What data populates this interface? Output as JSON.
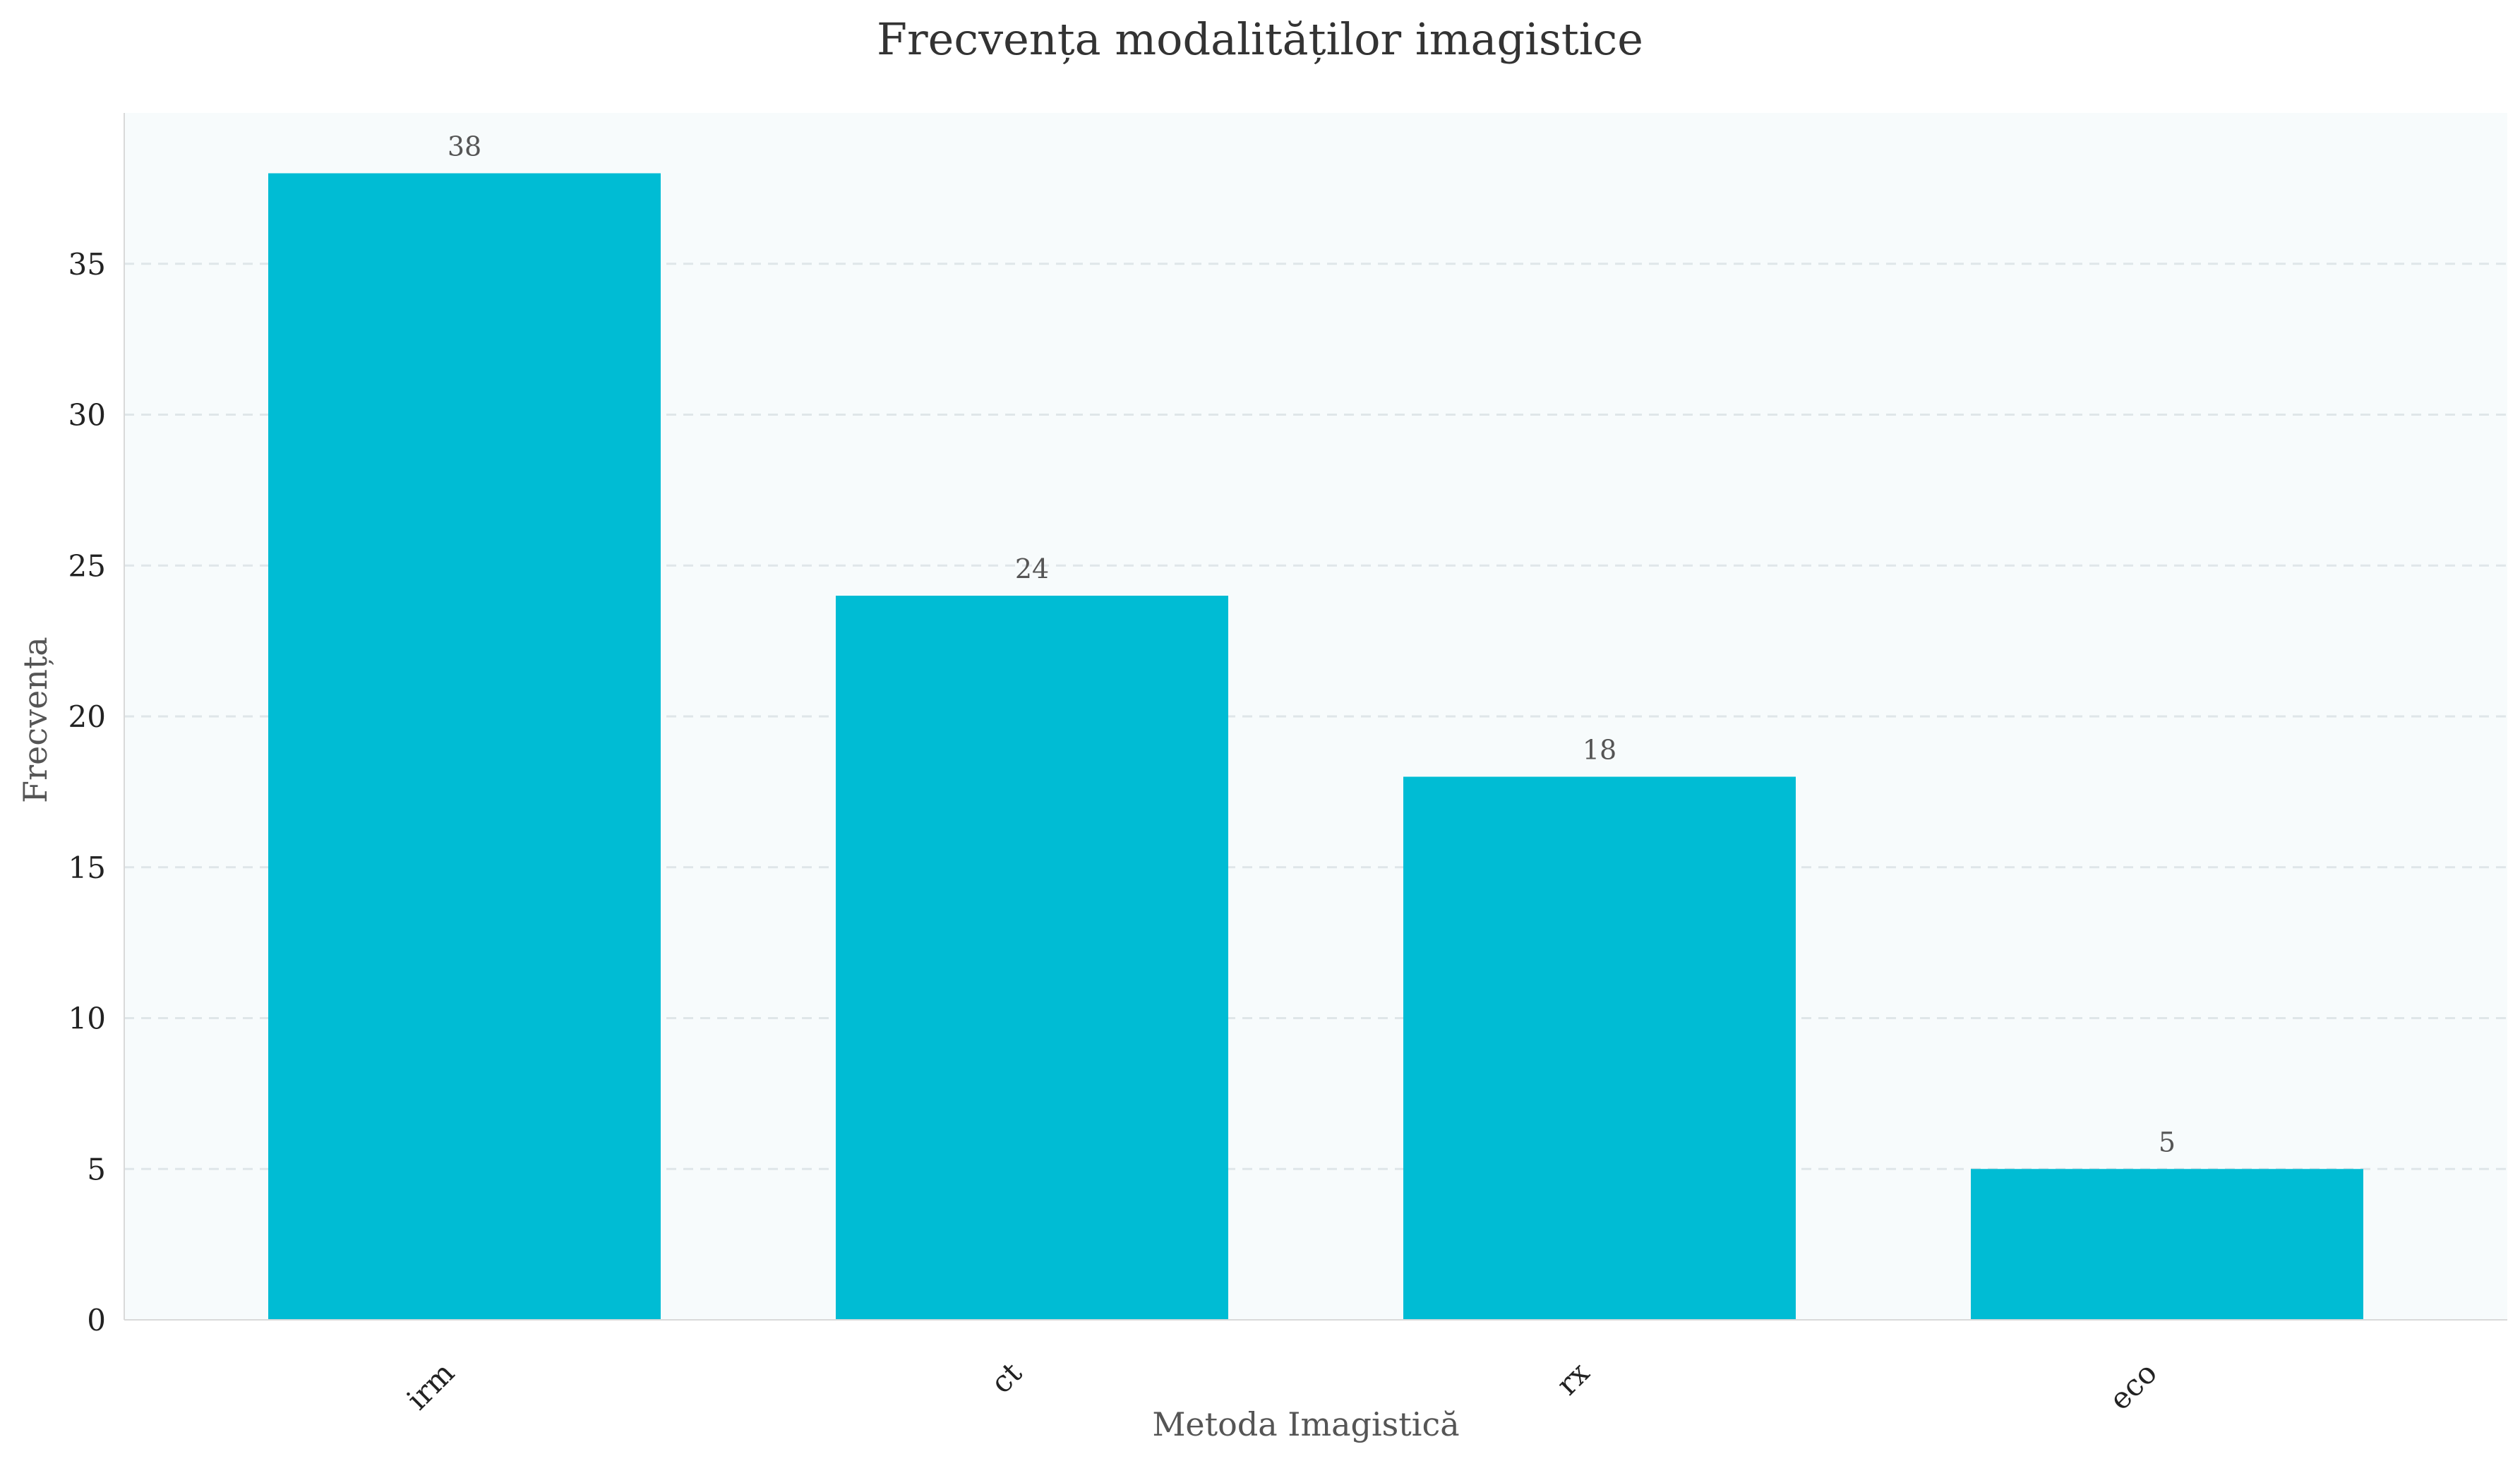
{
  "chart_data": {
    "type": "bar",
    "title": "Frecvența modalităților imagistice",
    "xlabel": "Metoda Imagistică",
    "ylabel": "Frecvența",
    "categories": [
      "irm",
      "ct",
      "rx",
      "eco"
    ],
    "values": [
      38,
      24,
      18,
      5
    ],
    "ylim": [
      0,
      40
    ],
    "yticks": [
      0,
      5,
      10,
      15,
      20,
      25,
      30,
      35
    ],
    "grid": "y-dashed",
    "legend": "none",
    "colors": {
      "bar": "#00bcd4",
      "plot_background": "#f7fbfc",
      "grid": "#dfe6e9",
      "axis": "#d9d9d9"
    }
  }
}
